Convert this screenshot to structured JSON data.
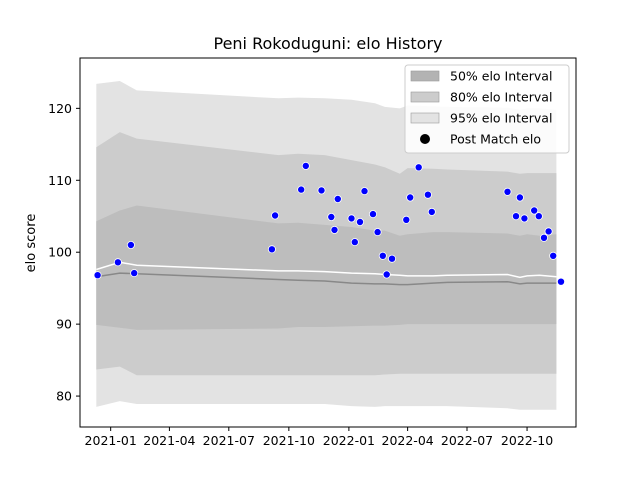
{
  "chart_data": {
    "type": "scatter",
    "title": "Peni Rokoduguni: elo History",
    "xlabel": "",
    "ylabel": "elo score",
    "x_ticks": [
      "2021-01",
      "2021-04",
      "2021-07",
      "2021-10",
      "2022-01",
      "2022-04",
      "2022-07",
      "2022-10"
    ],
    "y_ticks": [
      80,
      90,
      100,
      110,
      120
    ],
    "xlim": [
      "2020-11-15",
      "2022-12-15"
    ],
    "ylim": [
      75.7,
      127.0
    ],
    "grid": false,
    "legend_position": "top-right",
    "legend": [
      {
        "label": "50% elo Interval",
        "kind": "band",
        "color": "#b3b3b3"
      },
      {
        "label": "80% elo Interval",
        "kind": "band",
        "color": "#cccccc"
      },
      {
        "label": "95% elo Interval",
        "kind": "band",
        "color": "#e3e3e3"
      },
      {
        "label": "Post Match elo",
        "kind": "marker",
        "color": "#000000"
      }
    ],
    "colors": {
      "points": "#0000ff",
      "median_line": "#ffffff",
      "lower_line": "#888888"
    },
    "bands": {
      "x": [
        "2020-12-10",
        "2021-01-15",
        "2021-02-10",
        "2021-09-15",
        "2021-10-15",
        "2021-11-25",
        "2022-01-05",
        "2022-02-10",
        "2022-02-25",
        "2022-03-20",
        "2022-04-01",
        "2022-05-10",
        "2022-06-01",
        "2022-09-01",
        "2022-09-20",
        "2022-10-01",
        "2022-10-20",
        "2022-11-15"
      ],
      "p95_upper": [
        123.4,
        123.8,
        122.5,
        121.4,
        121.5,
        121.4,
        121.2,
        120.7,
        120.2,
        120.0,
        120.4,
        120.3,
        120.2,
        120.1,
        119.8,
        120.0,
        120.0,
        119.8
      ],
      "p80_upper": [
        114.6,
        116.7,
        115.8,
        113.5,
        113.7,
        113.5,
        112.8,
        112.2,
        111.8,
        110.9,
        111.7,
        111.6,
        111.5,
        111.2,
        110.9,
        111.0,
        111.0,
        111.0
      ],
      "p50_upper": [
        104.3,
        105.8,
        106.5,
        104.0,
        104.1,
        103.8,
        103.5,
        103.0,
        103.0,
        102.3,
        102.5,
        102.8,
        102.8,
        102.6,
        102.3,
        102.5,
        102.3,
        102.5
      ],
      "median": [
        97.6,
        98.6,
        98.2,
        97.4,
        97.4,
        97.3,
        97.1,
        97.0,
        96.9,
        96.8,
        96.7,
        96.7,
        96.8,
        96.9,
        96.5,
        96.7,
        96.8,
        96.6
      ],
      "p50_lower": [
        96.6,
        97.1,
        97.0,
        96.2,
        96.1,
        96.0,
        95.7,
        95.6,
        95.6,
        95.5,
        95.5,
        95.7,
        95.8,
        95.9,
        95.6,
        95.7,
        95.7,
        95.7
      ],
      "p80_lower": [
        89.9,
        89.5,
        89.2,
        89.4,
        89.6,
        89.6,
        89.7,
        89.8,
        89.8,
        89.9,
        90.0,
        90.0,
        90.0,
        90.0,
        90.0,
        90.0,
        90.0,
        90.0
      ],
      "p80_lower_ext": [
        83.7,
        84.1,
        82.9,
        82.9,
        82.9,
        82.9,
        82.9,
        82.9,
        83.0,
        83.1,
        83.1,
        83.1,
        83.1,
        83.1,
        83.1,
        83.1,
        83.1,
        83.1
      ],
      "p95_lower": [
        78.5,
        79.3,
        78.9,
        78.9,
        78.9,
        78.9,
        78.6,
        78.5,
        78.6,
        78.6,
        78.6,
        78.6,
        78.6,
        78.3,
        78.1,
        78.1,
        78.1,
        78.1
      ]
    },
    "points": [
      {
        "x": "2020-12-12",
        "y": 96.8
      },
      {
        "x": "2021-01-12",
        "y": 98.6
      },
      {
        "x": "2021-02-01",
        "y": 101.0
      },
      {
        "x": "2021-02-06",
        "y": 97.1
      },
      {
        "x": "2021-09-05",
        "y": 100.4
      },
      {
        "x": "2021-09-10",
        "y": 105.1
      },
      {
        "x": "2021-10-20",
        "y": 108.7
      },
      {
        "x": "2021-10-27",
        "y": 112.0
      },
      {
        "x": "2021-11-20",
        "y": 108.6
      },
      {
        "x": "2021-12-05",
        "y": 104.9
      },
      {
        "x": "2021-12-10",
        "y": 103.1
      },
      {
        "x": "2021-12-15",
        "y": 107.4
      },
      {
        "x": "2022-01-05",
        "y": 104.7
      },
      {
        "x": "2022-01-10",
        "y": 101.4
      },
      {
        "x": "2022-01-18",
        "y": 104.2
      },
      {
        "x": "2022-01-25",
        "y": 108.5
      },
      {
        "x": "2022-02-07",
        "y": 105.3
      },
      {
        "x": "2022-02-14",
        "y": 102.8
      },
      {
        "x": "2022-02-22",
        "y": 99.5
      },
      {
        "x": "2022-02-28",
        "y": 96.9
      },
      {
        "x": "2022-03-08",
        "y": 99.1
      },
      {
        "x": "2022-03-30",
        "y": 104.5
      },
      {
        "x": "2022-04-05",
        "y": 107.6
      },
      {
        "x": "2022-04-18",
        "y": 111.8
      },
      {
        "x": "2022-05-02",
        "y": 108.0
      },
      {
        "x": "2022-05-08",
        "y": 105.6
      },
      {
        "x": "2022-09-01",
        "y": 108.4
      },
      {
        "x": "2022-09-14",
        "y": 105.0
      },
      {
        "x": "2022-09-20",
        "y": 107.6
      },
      {
        "x": "2022-09-27",
        "y": 104.7
      },
      {
        "x": "2022-10-12",
        "y": 105.8
      },
      {
        "x": "2022-10-19",
        "y": 105.0
      },
      {
        "x": "2022-10-27",
        "y": 102.0
      },
      {
        "x": "2022-11-03",
        "y": 102.9
      },
      {
        "x": "2022-11-10",
        "y": 99.5
      },
      {
        "x": "2022-11-22",
        "y": 95.9
      }
    ]
  }
}
